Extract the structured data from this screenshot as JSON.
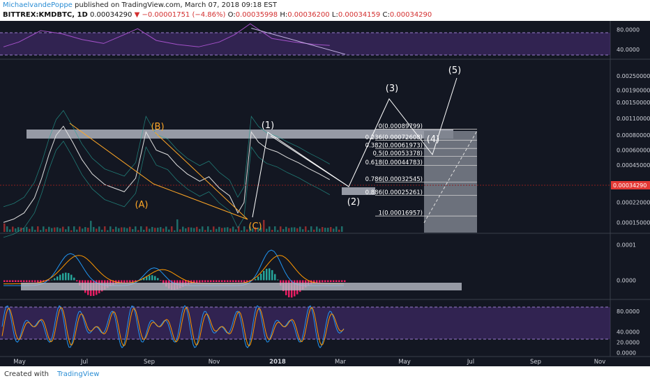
{
  "header": {
    "author": "MichaelvandePoppe",
    "published_text": "published on TradingView.com, March 07, 2018 09:18 EST",
    "symbol": "BITTREX:KMDBTC, 1D",
    "last": "0.00034290",
    "change": "▼ −0.00001751 (−4.86%)",
    "o_label": "O:",
    "o_value": "0.00035998",
    "h_label": "H:",
    "h_value": "0.00036200",
    "l_label": "L:",
    "l_value": "0.00034159",
    "c_label": "C:",
    "c_value": "0.00034290"
  },
  "footer": {
    "created_with": "Created with",
    "brand": "TradingView"
  },
  "colors": {
    "background": "#131722",
    "price_line": "#8c1f1f",
    "price_badge": "#e53935",
    "wave_labels": "#ffffff",
    "abc_labels": "#ffa726",
    "rsi_line": "#a451c9",
    "band": "#4b2d78",
    "macd_line": "#2196f3",
    "signal_line": "#ff9800",
    "hist": "#e91e63",
    "k_line": "#2196f3",
    "d_line": "#ff9800"
  },
  "chart_data": [
    {
      "type": "line",
      "name": "RSI panel",
      "y_ticks": [
        "80.0000",
        "40.0000"
      ],
      "ylim": [
        20,
        95
      ],
      "levels": [
        70,
        30
      ],
      "x": [
        "2017-04-25",
        "2017-05-10",
        "2017-05-31",
        "2017-06-20",
        "2017-07-10",
        "2017-07-31",
        "2017-08-20",
        "2017-09-02",
        "2017-09-20",
        "2017-10-10",
        "2017-10-31",
        "2017-11-20",
        "2017-12-05",
        "2017-12-20",
        "2018-01-10",
        "2018-01-31",
        "2018-02-20",
        "2018-03-07"
      ],
      "values": [
        45,
        55,
        78,
        72,
        60,
        52,
        70,
        82,
        58,
        50,
        45,
        55,
        70,
        92,
        62,
        55,
        50,
        48
      ],
      "trendline": {
        "from": [
          "2017-12-21",
          83
        ],
        "to": [
          "2018-03-22",
          30
        ]
      }
    },
    {
      "type": "line",
      "name": "KMDBTC price (log scale)",
      "scale": "log",
      "y_ticks": [
        "0.00250000",
        "0.00190000",
        "0.00150000",
        "0.00110000",
        "0.00080000",
        "0.00060000",
        "0.00045000",
        "0.00030000",
        "0.00022000",
        "0.00015000"
      ],
      "ylim": [
        0.000125,
        0.0033
      ],
      "last_price": "0.00034290",
      "x": [
        "2017-04-25",
        "2017-05-05",
        "2017-05-15",
        "2017-05-25",
        "2017-06-01",
        "2017-06-08",
        "2017-06-15",
        "2017-06-22",
        "2017-07-01",
        "2017-07-10",
        "2017-07-20",
        "2017-08-01",
        "2017-08-10",
        "2017-08-20",
        "2017-08-31",
        "2017-09-10",
        "2017-09-20",
        "2017-10-01",
        "2017-10-10",
        "2017-10-20",
        "2017-11-01",
        "2017-11-10",
        "2017-11-20",
        "2017-11-30",
        "2017-12-08",
        "2017-12-14",
        "2017-12-21",
        "2017-12-28",
        "2018-01-05",
        "2018-01-15",
        "2018-01-25",
        "2018-02-05",
        "2018-02-15",
        "2018-02-25",
        "2018-03-07"
      ],
      "values": [
        0.00015,
        0.00016,
        0.00018,
        0.00024,
        0.00035,
        0.00055,
        0.0008,
        0.00095,
        0.0007,
        0.0005,
        0.00038,
        0.00031,
        0.00029,
        0.00027,
        0.00035,
        0.00085,
        0.0006,
        0.00055,
        0.00045,
        0.00038,
        0.00033,
        0.00036,
        0.00029,
        0.00025,
        0.00018,
        0.00022,
        0.00085,
        0.0007,
        0.00062,
        0.00058,
        0.00052,
        0.00047,
        0.00042,
        0.00038,
        0.00034
      ],
      "resistance_zone": "0.00080000 - 0.00090000",
      "wave_labels": [
        "(1)",
        "(2)",
        "(3)",
        "(4)",
        "(5)"
      ],
      "abc_labels": [
        "(A)",
        "(B)",
        "(C)"
      ],
      "fibonacci": [
        {
          "label": "0(0.00089799)",
          "value": 0.00089799
        },
        {
          "label": "0.236(0.00072608)",
          "value": 0.00072608
        },
        {
          "label": "0.382(0.00061973)",
          "value": 0.00061973
        },
        {
          "label": "0.5(0.00053378)",
          "value": 0.00053378
        },
        {
          "label": "0.618(0.00044783)",
          "value": 0.00044783
        },
        {
          "label": "0.786(0.00032545)",
          "value": 0.00032545
        },
        {
          "label": "0.886(0.00025261)",
          "value": 0.00025261
        },
        {
          "label": "1(0.00016957)",
          "value": 0.00016957
        }
      ]
    },
    {
      "type": "line",
      "name": "MACD panel",
      "y_ticks": [
        "0.0001",
        "0.0000"
      ],
      "ylim": [
        -5e-05,
        0.00013
      ]
    },
    {
      "type": "line",
      "name": "Stochastic panel",
      "y_ticks": [
        "80.0000",
        "40.0000",
        "20.0000",
        "0.0000"
      ],
      "ylim": [
        -5,
        100
      ],
      "levels": [
        80,
        20
      ]
    }
  ],
  "x_axis_labels": [
    "May",
    "Jul",
    "Sep",
    "Nov",
    "2018",
    "Mar",
    "May",
    "Jul",
    "Sep",
    "Nov"
  ]
}
